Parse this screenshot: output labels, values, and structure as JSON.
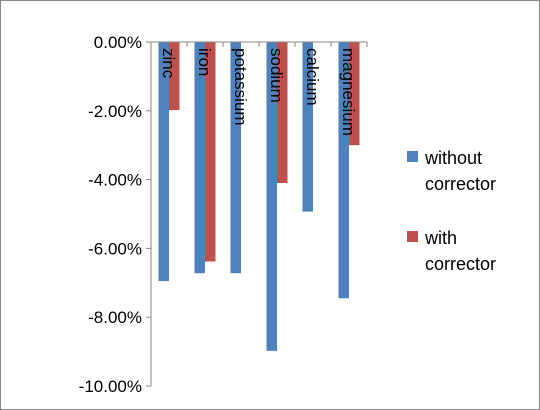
{
  "chart_data": {
    "type": "bar",
    "orientation": "vertical",
    "categories": [
      "zinc",
      "iron",
      "potassium",
      "sodium",
      "calcium",
      "magnesium"
    ],
    "series": [
      {
        "name": "without corrector",
        "color": "#4F81BD",
        "values": [
          -6.95,
          -6.72,
          -6.72,
          -8.98,
          -4.93,
          -7.45
        ]
      },
      {
        "name": "with corrector",
        "color": "#C0504D",
        "values": [
          -1.98,
          -6.38,
          null,
          -4.1,
          null,
          -3.0
        ]
      }
    ],
    "ylim": [
      -10,
      0
    ],
    "yticks": [
      0,
      -2,
      -4,
      -6,
      -8,
      -10
    ],
    "ytick_labels": [
      "0.00%",
      "-2.00%",
      "-4.00%",
      "-6.00%",
      "-8.00%",
      "-10.00%"
    ],
    "grid": false,
    "legend_position": "right",
    "category_label_position": "top, rotated vertical"
  }
}
